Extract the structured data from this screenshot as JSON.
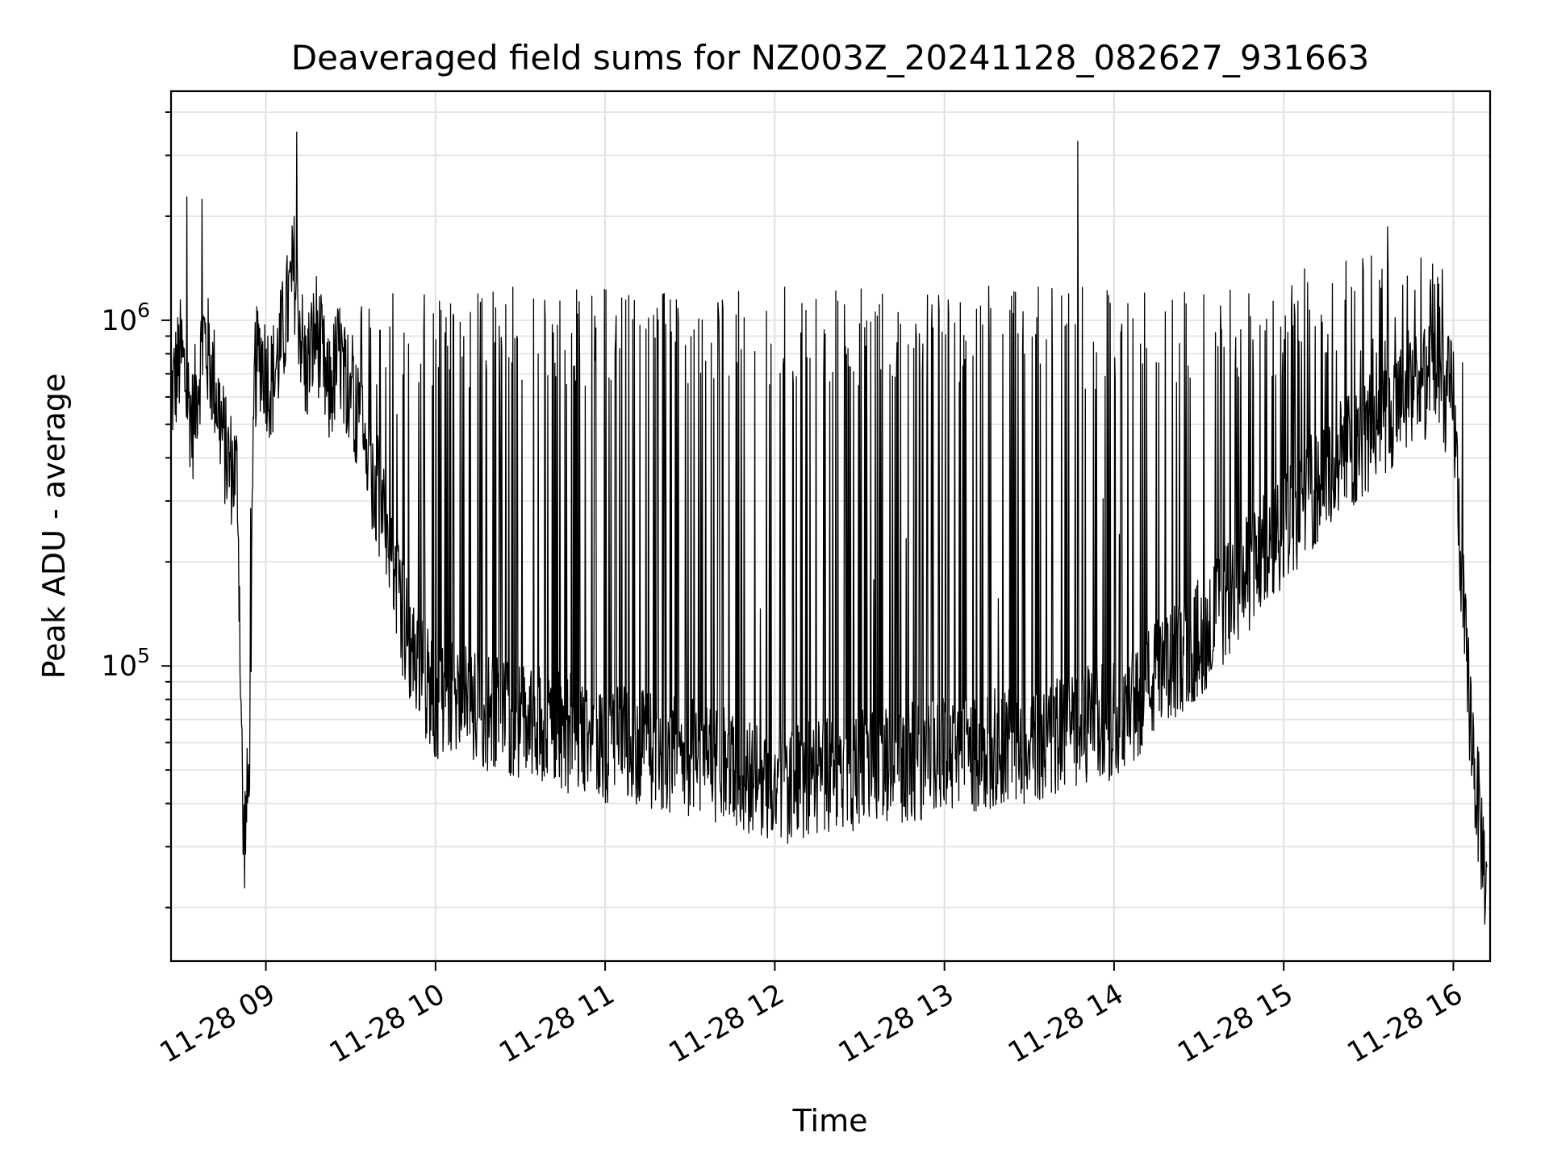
{
  "chart_data": {
    "type": "line",
    "title": "Deaveraged field sums for NZ003Z_20241128_082627_931663",
    "xlabel": "Time",
    "ylabel": "Peak ADU - average",
    "xlim": [
      "2024-11-28 08:26:27",
      "2024-11-28 16:13:00"
    ],
    "ylim": [
      14000,
      4600000
    ],
    "yscale": "log",
    "grid": true,
    "line_color": "#000000",
    "x_ticks": [
      "11-28 09",
      "11-28 10",
      "11-28 11",
      "11-28 12",
      "11-28 13",
      "11-28 14",
      "11-28 15",
      "11-28 16"
    ],
    "y_ticks": [
      {
        "base": "10",
        "exp": "5",
        "value": 100000
      },
      {
        "base": "10",
        "exp": "6",
        "value": 1000000
      }
    ],
    "series": [
      {
        "x": [
          "2024-11-28 08:26:30",
          "2024-11-28 08:30:00",
          "2024-11-28 08:34:00",
          "2024-11-28 08:38:00",
          "2024-11-28 08:42:00",
          "2024-11-28 08:46:00",
          "2024-11-28 08:50:00",
          "2024-11-28 08:52:00",
          "2024-11-28 08:54:00",
          "2024-11-28 08:56:00",
          "2024-11-28 08:58:00",
          "2024-11-28 09:02:00",
          "2024-11-28 09:06:00",
          "2024-11-28 09:10:00",
          "2024-11-28 09:14:00",
          "2024-11-28 09:18:00",
          "2024-11-28 09:22:00",
          "2024-11-28 09:26:00",
          "2024-11-28 09:30:00",
          "2024-11-28 09:40:00",
          "2024-11-28 09:50:00",
          "2024-11-28 10:00:00",
          "2024-11-28 10:30:00",
          "2024-11-28 11:00:00",
          "2024-11-28 11:30:00",
          "2024-11-28 12:00:00",
          "2024-11-28 12:30:00",
          "2024-11-28 13:00:00",
          "2024-11-28 13:30:00",
          "2024-11-28 14:00:00",
          "2024-11-28 14:30:00",
          "2024-11-28 15:00:00",
          "2024-11-28 15:20:00",
          "2024-11-28 15:40:00",
          "2024-11-28 15:50:00",
          "2024-11-28 16:00:00",
          "2024-11-28 16:04:00",
          "2024-11-28 16:08:00",
          "2024-11-28 16:12:00"
        ],
        "values": [
          600000,
          800000,
          500000,
          900000,
          650000,
          400000,
          350000,
          30000,
          45000,
          700000,
          800000,
          650000,
          900000,
          1400000,
          700000,
          950000,
          600000,
          800000,
          650000,
          300000,
          120000,
          80000,
          70000,
          60000,
          55000,
          45000,
          50000,
          55000,
          60000,
          70000,
          120000,
          250000,
          400000,
          550000,
          650000,
          600000,
          120000,
          45000,
          22000
        ],
        "peaks": [
          1200000,
          1500000,
          2900000,
          1800000,
          2600000,
          900000,
          700000,
          1300000,
          1300000,
          1200000,
          1150000,
          1100000,
          1050000,
          1000000,
          1000000,
          1100000,
          1300000,
          1900000,
          2500000,
          3500000,
          600000,
          200000
        ]
      }
    ]
  }
}
